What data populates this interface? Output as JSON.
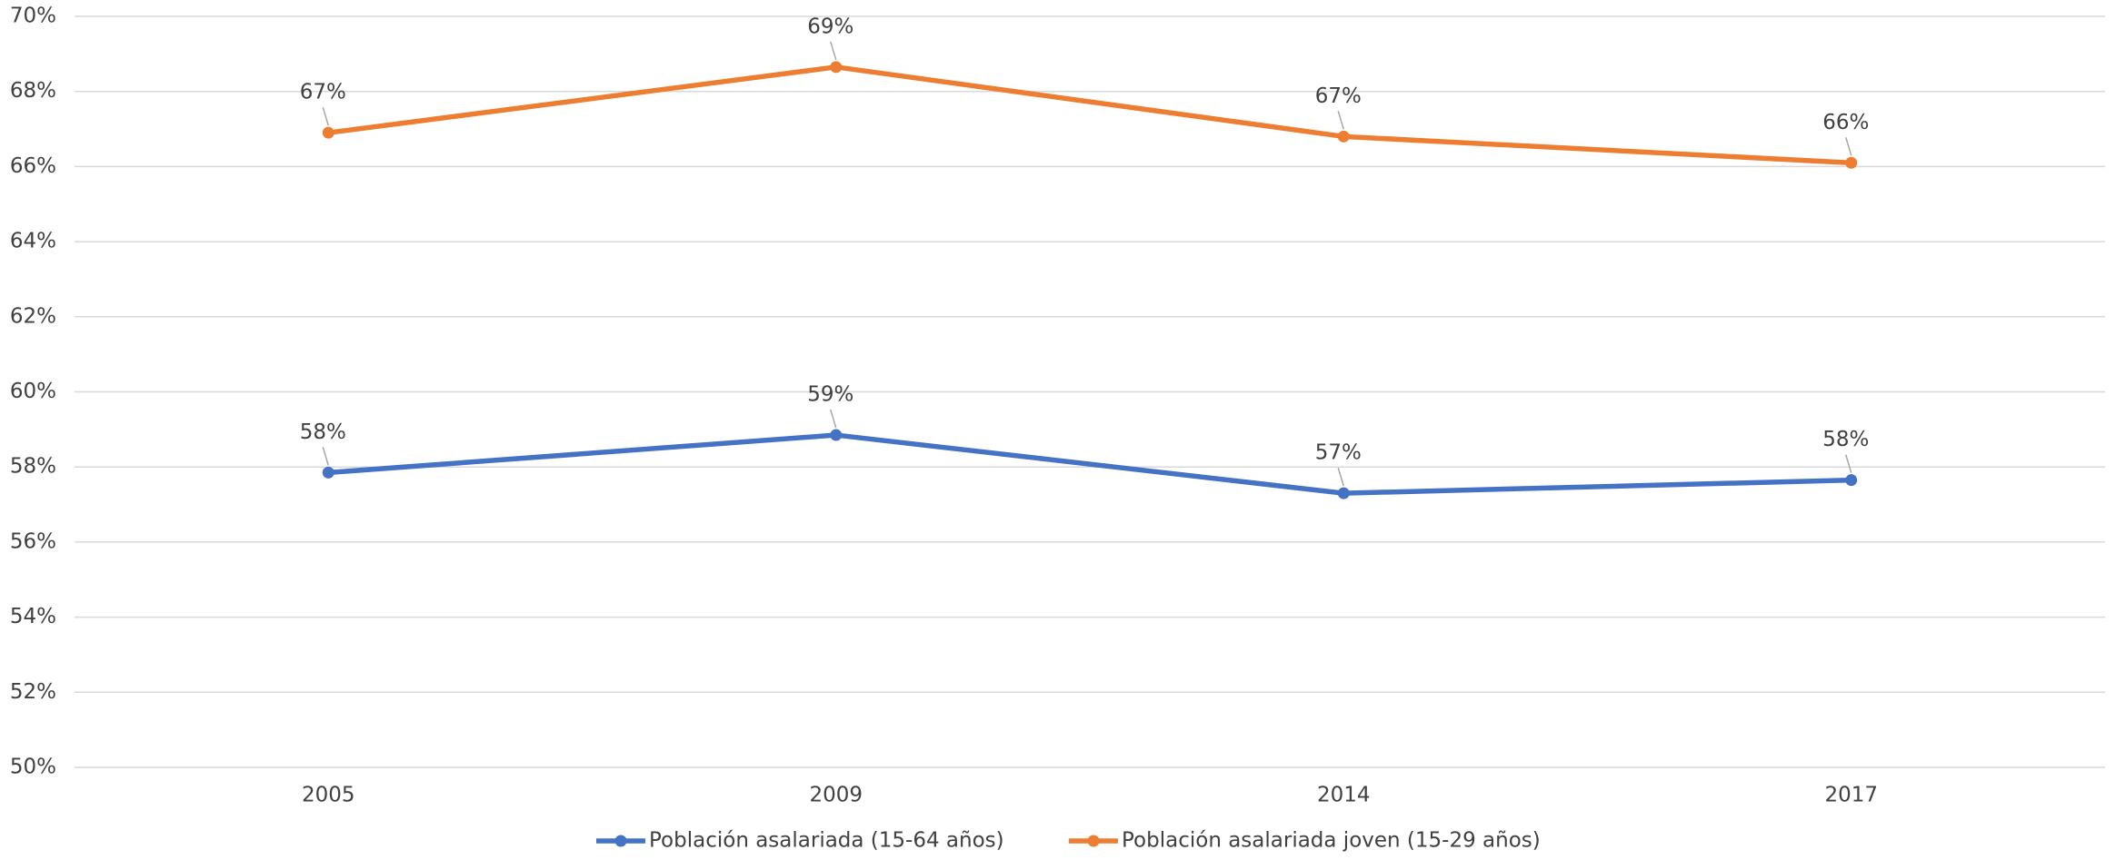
{
  "chart_data": {
    "type": "line",
    "categories": [
      "2005",
      "2009",
      "2014",
      "2017"
    ],
    "series": [
      {
        "name": "Población asalariada (15-64 años)",
        "color": "#4472c4",
        "values": [
          57.85,
          58.85,
          57.3,
          57.65
        ],
        "value_labels": [
          "58%",
          "59%",
          "57%",
          "58%"
        ]
      },
      {
        "name": "Población asalariada joven (15-29 años)",
        "color": "#ed7d31",
        "values": [
          66.9,
          68.65,
          66.8,
          66.1
        ],
        "value_labels": [
          "67%",
          "69%",
          "67%",
          "66%"
        ]
      }
    ],
    "ylim": [
      50,
      70
    ],
    "yticks": [
      {
        "value": 50,
        "label": "50%"
      },
      {
        "value": 52,
        "label": "52%"
      },
      {
        "value": 54,
        "label": "54%"
      },
      {
        "value": 56,
        "label": "56%"
      },
      {
        "value": 58,
        "label": "58%"
      },
      {
        "value": 60,
        "label": "60%"
      },
      {
        "value": 62,
        "label": "62%"
      },
      {
        "value": 64,
        "label": "64%"
      },
      {
        "value": 66,
        "label": "66%"
      },
      {
        "value": 68,
        "label": "68%"
      },
      {
        "value": 70,
        "label": "70%"
      }
    ],
    "grid": true,
    "legend": "bottom"
  }
}
